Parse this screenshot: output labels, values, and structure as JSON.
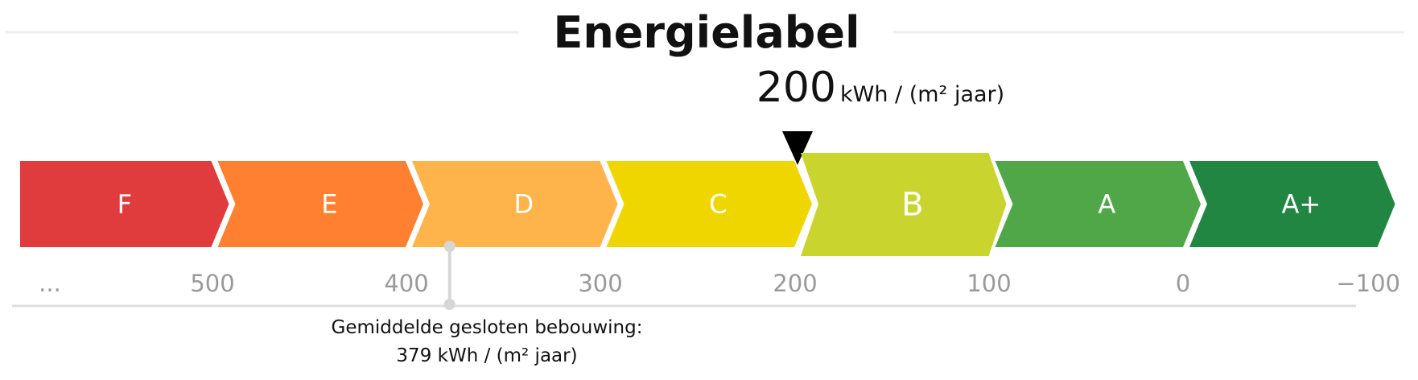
{
  "chart_data": {
    "type": "scale",
    "title": "Energielabel",
    "unit": "kWh / (m² jaar)",
    "axis": {
      "direction": "descending",
      "ticks": [
        "...",
        "500",
        "400",
        "300",
        "200",
        "100",
        "0",
        "−100"
      ]
    },
    "categories": [
      {
        "label": "F",
        "upper": 600,
        "lower": 500,
        "color": "#e03c3e"
      },
      {
        "label": "E",
        "upper": 500,
        "lower": 400,
        "color": "#fe8030"
      },
      {
        "label": "D",
        "upper": 400,
        "lower": 300,
        "color": "#feb44a"
      },
      {
        "label": "C",
        "upper": 300,
        "lower": 200,
        "color": "#f0d600"
      },
      {
        "label": "B",
        "upper": 200,
        "lower": 100,
        "color": "#cad42f"
      },
      {
        "label": "A",
        "upper": 100,
        "lower": 0,
        "color": "#50a748"
      },
      {
        "label": "A+",
        "upper": 0,
        "lower": -100,
        "color": "#228643"
      }
    ],
    "highlighted_category": "B",
    "reading": {
      "value": 200,
      "value_label": "200",
      "unit": "kWh / (m² jaar)"
    },
    "reference": {
      "label": "Gemiddelde gesloten bebouwing:",
      "value": 379,
      "value_label": "379 kWh / (m² jaar)"
    }
  },
  "colors": {
    "title_line": "#eeeeee",
    "axis_line": "#dedede",
    "tick_text": "#999999",
    "reference_marker": "#d6d6d6",
    "text": "#111111"
  }
}
